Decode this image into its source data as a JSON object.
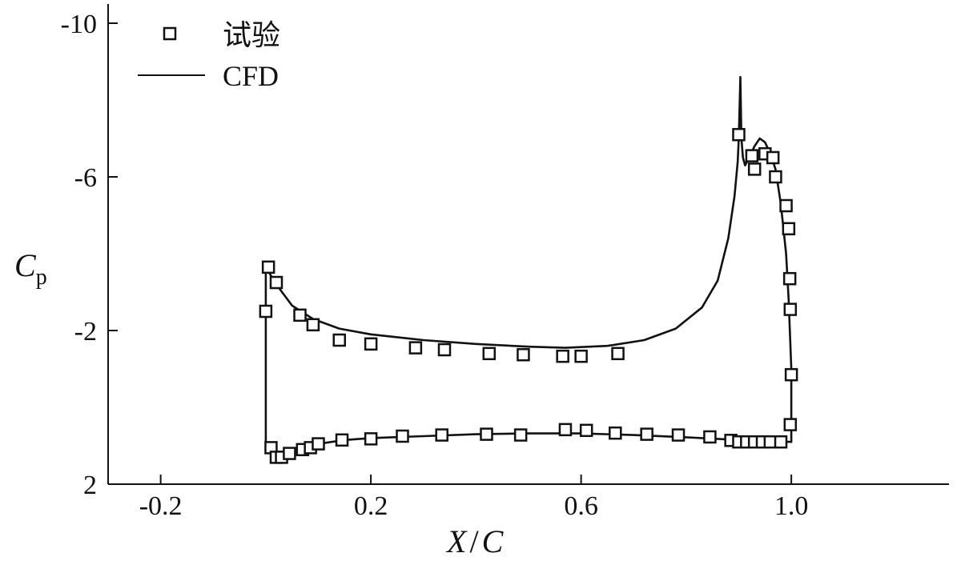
{
  "chart_data": {
    "type": "line",
    "title": "",
    "xlabel": {
      "main": "X",
      "sep": "/",
      "denom": "C"
    },
    "ylabel": {
      "main": "C",
      "sub": "p"
    },
    "xlim": [
      -0.3,
      1.3
    ],
    "ylim": [
      2,
      -10.5
    ],
    "y_reversed": true,
    "grid": false,
    "legend_position": "top-left",
    "x_ticks": [
      -0.2,
      0.2,
      0.6,
      1.0
    ],
    "x_tick_labels": [
      "-0.2",
      "0.2",
      "0.6",
      "1.0"
    ],
    "y_ticks": [
      -10,
      -6,
      -2,
      2
    ],
    "y_tick_labels": [
      "-10",
      "-6",
      "-2",
      "2"
    ],
    "series": [
      {
        "name": "试验",
        "kind": "marker-square",
        "points": [
          [
            0.0,
            -2.5
          ],
          [
            0.005,
            -3.65
          ],
          [
            0.02,
            -3.25
          ],
          [
            0.065,
            -2.4
          ],
          [
            0.09,
            -2.15
          ],
          [
            0.14,
            -1.75
          ],
          [
            0.2,
            -1.65
          ],
          [
            0.285,
            -1.55
          ],
          [
            0.34,
            -1.5
          ],
          [
            0.425,
            -1.4
          ],
          [
            0.49,
            -1.37
          ],
          [
            0.565,
            -1.33
          ],
          [
            0.6,
            -1.33
          ],
          [
            0.67,
            -1.4
          ],
          [
            0.9,
            -7.1
          ],
          [
            0.925,
            -6.55
          ],
          [
            0.93,
            -6.2
          ],
          [
            0.95,
            -6.6
          ],
          [
            0.965,
            -6.5
          ],
          [
            0.97,
            -6.0
          ],
          [
            0.99,
            -5.25
          ],
          [
            0.995,
            -4.65
          ],
          [
            0.997,
            -3.35
          ],
          [
            0.998,
            -2.55
          ],
          [
            1.0,
            -0.85
          ],
          [
            0.998,
            0.45
          ],
          [
            0.01,
            1.05
          ],
          [
            0.02,
            1.3
          ],
          [
            0.03,
            1.3
          ],
          [
            0.045,
            1.2
          ],
          [
            0.07,
            1.1
          ],
          [
            0.085,
            1.05
          ],
          [
            0.1,
            0.95
          ],
          [
            0.145,
            0.85
          ],
          [
            0.2,
            0.82
          ],
          [
            0.26,
            0.75
          ],
          [
            0.335,
            0.72
          ],
          [
            0.42,
            0.7
          ],
          [
            0.485,
            0.72
          ],
          [
            0.57,
            0.58
          ],
          [
            0.61,
            0.6
          ],
          [
            0.665,
            0.67
          ],
          [
            0.725,
            0.7
          ],
          [
            0.785,
            0.72
          ],
          [
            0.845,
            0.77
          ],
          [
            0.885,
            0.86
          ],
          [
            0.9,
            0.9
          ],
          [
            0.915,
            0.9
          ],
          [
            0.93,
            0.9
          ],
          [
            0.945,
            0.9
          ],
          [
            0.96,
            0.9
          ],
          [
            0.98,
            0.9
          ]
        ]
      },
      {
        "name": "CFD",
        "kind": "line",
        "points": [
          [
            0.0,
            0.9
          ],
          [
            0.0,
            -3.65
          ],
          [
            0.02,
            -3.2
          ],
          [
            0.05,
            -2.65
          ],
          [
            0.09,
            -2.3
          ],
          [
            0.14,
            -2.05
          ],
          [
            0.2,
            -1.9
          ],
          [
            0.3,
            -1.75
          ],
          [
            0.4,
            -1.65
          ],
          [
            0.5,
            -1.58
          ],
          [
            0.57,
            -1.55
          ],
          [
            0.65,
            -1.6
          ],
          [
            0.72,
            -1.75
          ],
          [
            0.78,
            -2.05
          ],
          [
            0.83,
            -2.6
          ],
          [
            0.86,
            -3.3
          ],
          [
            0.88,
            -4.4
          ],
          [
            0.892,
            -5.5
          ],
          [
            0.898,
            -6.4
          ],
          [
            0.9,
            -7.0
          ],
          [
            0.903,
            -8.6
          ],
          [
            0.905,
            -7.0
          ],
          [
            0.908,
            -6.5
          ],
          [
            0.912,
            -6.3
          ],
          [
            0.92,
            -6.5
          ],
          [
            0.93,
            -6.8
          ],
          [
            0.94,
            -7.0
          ],
          [
            0.95,
            -6.9
          ],
          [
            0.96,
            -6.6
          ],
          [
            0.97,
            -6.2
          ],
          [
            0.98,
            -5.3
          ],
          [
            0.99,
            -4.0
          ],
          [
            0.995,
            -2.8
          ],
          [
            1.0,
            -1.0
          ],
          [
            1.0,
            0.9
          ],
          [
            0.95,
            0.88
          ],
          [
            0.9,
            0.85
          ],
          [
            0.8,
            0.78
          ],
          [
            0.7,
            0.72
          ],
          [
            0.6,
            0.68
          ],
          [
            0.5,
            0.68
          ],
          [
            0.4,
            0.7
          ],
          [
            0.3,
            0.75
          ],
          [
            0.2,
            0.8
          ],
          [
            0.15,
            0.85
          ],
          [
            0.1,
            0.95
          ],
          [
            0.06,
            1.1
          ],
          [
            0.03,
            1.28
          ],
          [
            0.015,
            1.22
          ],
          [
            0.005,
            1.05
          ],
          [
            0.0,
            0.9
          ]
        ]
      }
    ]
  }
}
